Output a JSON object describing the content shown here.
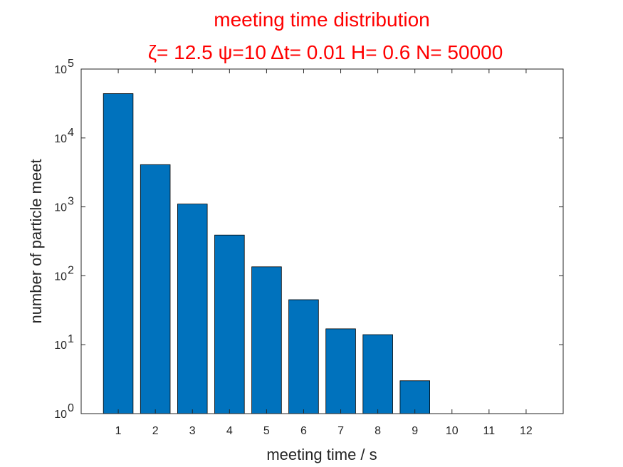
{
  "chart_data": {
    "type": "bar",
    "title": "meeting time distribution",
    "subtitle": "ζ= 12.5 ψ=10 Δt= 0.01 H= 0.6 N= 50000",
    "xlabel": "meeting time / s",
    "ylabel": "number of particle meet",
    "categories": [
      "1",
      "2",
      "3",
      "4",
      "5",
      "6",
      "7",
      "8",
      "9",
      "10",
      "11",
      "12"
    ],
    "values": [
      44000,
      4100,
      1100,
      390,
      135,
      45,
      17,
      14,
      3,
      0,
      0,
      0
    ],
    "yscale": "log",
    "ylim": [
      1,
      100000
    ],
    "xlim": [
      0,
      13
    ],
    "ytick_exponents": [
      0,
      1,
      2,
      3,
      4,
      5
    ],
    "ytick_base": "10",
    "bar_color": "#0072BD",
    "title_color": "#FF0000",
    "grid": false
  }
}
